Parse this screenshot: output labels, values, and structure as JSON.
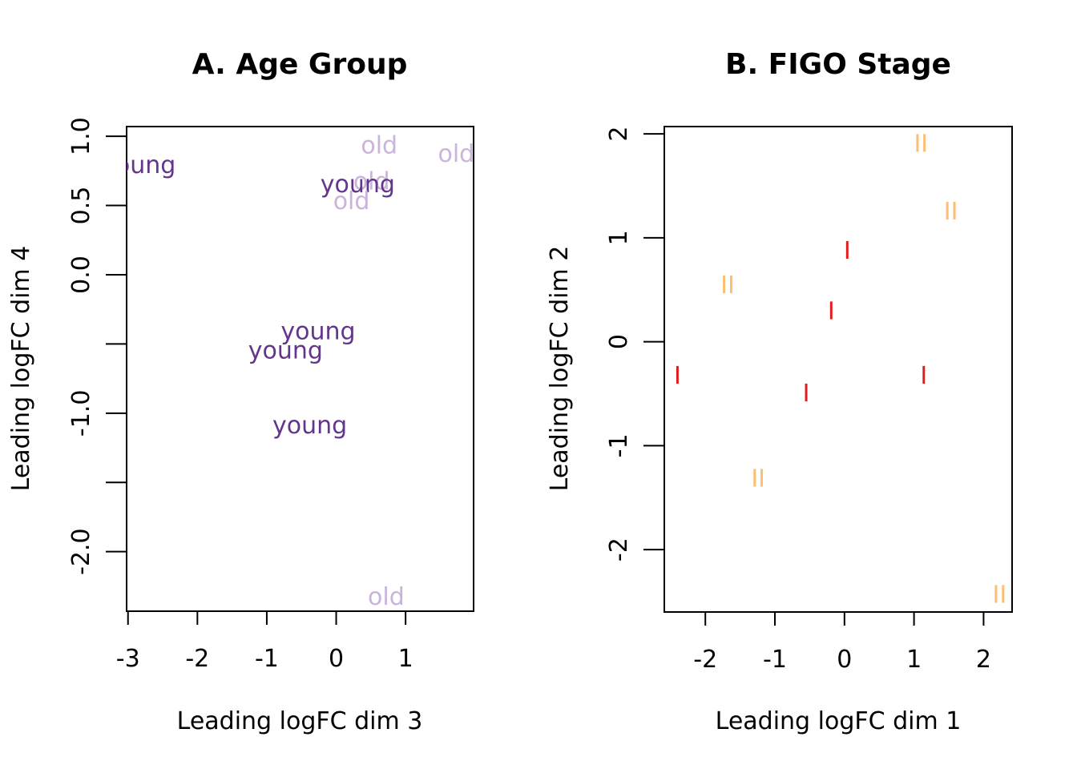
{
  "chart_data": [
    {
      "type": "scatter",
      "title": "A. Age Group",
      "xlabel": "Leading logFC dim 3",
      "ylabel": "Leading logFC dim 4",
      "xlim": [
        -3.02,
        1.98
      ],
      "ylim": [
        -2.43,
        1.07
      ],
      "xticks": [
        -3,
        -2,
        -1,
        0,
        1
      ],
      "xtick_labels": [
        "-3",
        "-2",
        "-1",
        "0",
        "1"
      ],
      "yticks": [
        -2.0,
        -1.5,
        -1.0,
        -0.5,
        0.0,
        0.5,
        1.0
      ],
      "ytick_labels": [
        "-2.0",
        "",
        "-1.0",
        "",
        "0.0",
        "0.5",
        "1.0"
      ],
      "grid": false,
      "legend": "none",
      "colors": {
        "old": "#cbb4db",
        "young": "#64358c"
      },
      "points": [
        {
          "x": -2.85,
          "y": 0.79,
          "label": "young",
          "group": "young"
        },
        {
          "x": 0.62,
          "y": 0.93,
          "label": "old",
          "group": "old"
        },
        {
          "x": 1.73,
          "y": 0.87,
          "label": "old",
          "group": "old"
        },
        {
          "x": 0.51,
          "y": 0.67,
          "label": "old",
          "group": "old"
        },
        {
          "x": 0.31,
          "y": 0.65,
          "label": "young",
          "group": "young"
        },
        {
          "x": 0.22,
          "y": 0.53,
          "label": "old",
          "group": "old"
        },
        {
          "x": -0.26,
          "y": -0.41,
          "label": "young",
          "group": "young"
        },
        {
          "x": -0.73,
          "y": -0.55,
          "label": "young",
          "group": "young"
        },
        {
          "x": -0.38,
          "y": -1.09,
          "label": "young",
          "group": "young"
        },
        {
          "x": 0.72,
          "y": -2.33,
          "label": "old",
          "group": "old"
        }
      ]
    },
    {
      "type": "scatter",
      "title": "B. FIGO Stage",
      "xlabel": "Leading logFC dim 1",
      "ylabel": "Leading logFC dim 2",
      "xlim": [
        -2.59,
        2.41
      ],
      "ylim": [
        -2.6,
        2.07
      ],
      "xticks": [
        -2,
        -1,
        0,
        1,
        2
      ],
      "xtick_labels": [
        "-2",
        "-1",
        "0",
        "1",
        "2"
      ],
      "yticks": [
        -2,
        -1,
        0,
        1,
        2
      ],
      "ytick_labels": [
        "-2",
        "-1",
        "0",
        "1",
        "2"
      ],
      "grid": false,
      "legend": "none",
      "colors": {
        "I": "#e31a1c",
        "II": "#fdbf6f"
      },
      "points": [
        {
          "x": 1.1,
          "y": 1.9,
          "label": "II",
          "group": "II"
        },
        {
          "x": 1.53,
          "y": 1.25,
          "label": "II",
          "group": "II"
        },
        {
          "x": 0.04,
          "y": 0.87,
          "label": "I",
          "group": "I"
        },
        {
          "x": -1.68,
          "y": 0.54,
          "label": "II",
          "group": "II"
        },
        {
          "x": -0.19,
          "y": 0.29,
          "label": "I",
          "group": "I"
        },
        {
          "x": -2.4,
          "y": -0.33,
          "label": "I",
          "group": "I"
        },
        {
          "x": 1.14,
          "y": -0.33,
          "label": "I",
          "group": "I"
        },
        {
          "x": -0.55,
          "y": -0.5,
          "label": "I",
          "group": "I"
        },
        {
          "x": -1.24,
          "y": -1.32,
          "label": "II",
          "group": "II"
        },
        {
          "x": 2.23,
          "y": -2.44,
          "label": "II",
          "group": "II"
        }
      ]
    }
  ]
}
